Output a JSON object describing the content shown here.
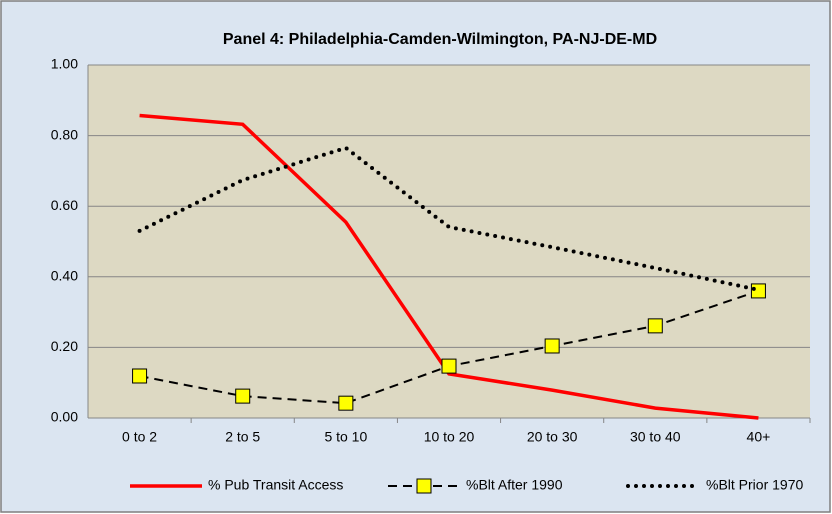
{
  "chart_data": {
    "type": "line",
    "title": "Panel 4: Philadelphia-Camden-Wilmington, PA-NJ-DE-MD",
    "categories": [
      "0 to 2",
      "2 to 5",
      "5 to 10",
      "10 to 20",
      "20 to 30",
      "30 to 40",
      "40+"
    ],
    "series": [
      {
        "name": "% Pub Transit Access",
        "color": "#ff0000",
        "line_style": "solid",
        "values": [
          0.857,
          0.832,
          0.555,
          0.125,
          0.079,
          0.028,
          0.0
        ]
      },
      {
        "name": "%Blt After 1990",
        "color": "#000000",
        "line_style": "dashed",
        "marker": "square",
        "marker_color": "#ffff00",
        "values": [
          0.119,
          0.062,
          0.042,
          0.147,
          0.204,
          0.261,
          0.36
        ]
      },
      {
        "name": "%Blt Prior 1970",
        "color": "#000000",
        "line_style": "dotted",
        "values": [
          0.53,
          0.674,
          0.765,
          0.541,
          0.484,
          0.425,
          0.363
        ]
      }
    ],
    "ylim": [
      0,
      1
    ],
    "yticks": [
      {
        "value": 0,
        "label": "0.00"
      },
      {
        "value": 0.2,
        "label": "0.20"
      },
      {
        "value": 0.4,
        "label": "0.40"
      },
      {
        "value": 0.6,
        "label": "0.60"
      },
      {
        "value": 0.8,
        "label": "0.80"
      },
      {
        "value": 1,
        "label": "1.00"
      }
    ],
    "grid": true,
    "legend": "bottom"
  }
}
